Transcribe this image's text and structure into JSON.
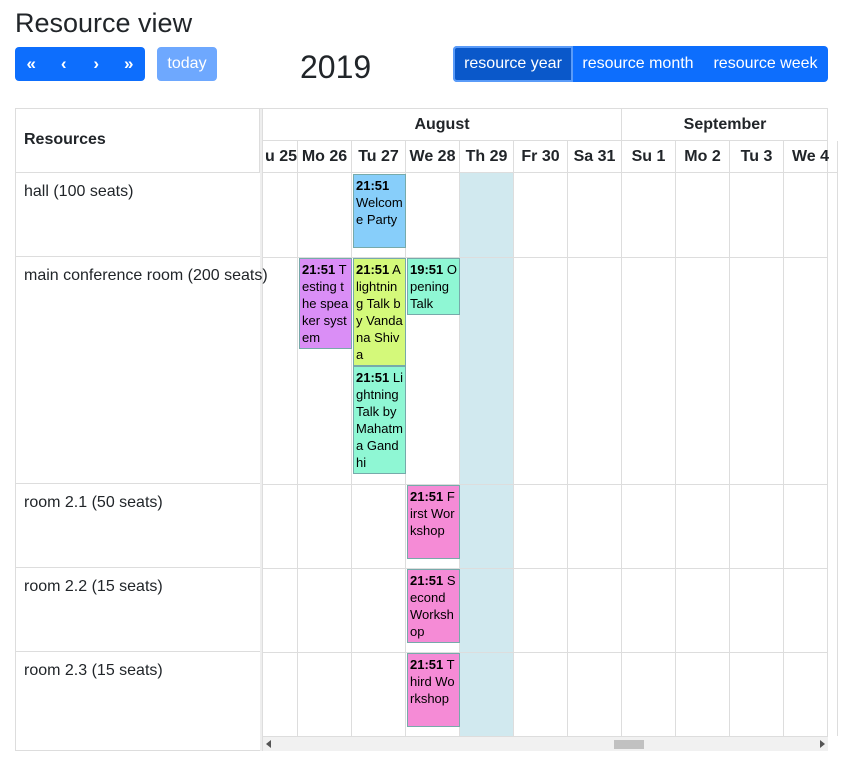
{
  "title": "Resource view",
  "toolbar": {
    "prev_year_icon": "«",
    "prev_icon": "‹",
    "next_icon": "›",
    "next_year_icon": "»",
    "today_label": "today",
    "current_title": "2019",
    "views": [
      "resource year",
      "resource month",
      "resource week"
    ],
    "active_view": "resource year"
  },
  "resources_header": "Resources",
  "months": [
    {
      "label": "August"
    },
    {
      "label": "September"
    }
  ],
  "days": [
    "u 25",
    "Mo 26",
    "Tu 27",
    "We 28",
    "Th 29",
    "Fr 30",
    "Sa 31",
    "Su 1",
    "Mo 2",
    "Tu 3",
    "We 4"
  ],
  "today_day": "Th 29",
  "resources": [
    "hall (100 seats)",
    "main conference room (200 seats)",
    "room 2.1 (50 seats)",
    "room 2.2 (15 seats)",
    "room 2.3 (15 seats)"
  ],
  "events": [
    {
      "time": "21:51",
      "title": "Welcome Party",
      "resource": 0,
      "day": 2,
      "color": "#87cefa"
    },
    {
      "time": "21:51",
      "title": "Testing the speaker system",
      "resource": 1,
      "day": 1,
      "color": "#da8ef6"
    },
    {
      "time": "21:51",
      "title": "A lightning Talk by Vandana Shiva",
      "resource": 1,
      "day": 2,
      "color": "#d4f97a"
    },
    {
      "time": "19:51",
      "title": "Opening Talk",
      "resource": 1,
      "day": 3,
      "color": "#8ff7d4"
    },
    {
      "time": "21:51",
      "title": "Lightning Talk by Mahatma Gandhi",
      "resource": 1,
      "day": 2,
      "color": "#8ff7d4"
    },
    {
      "time": "21:51",
      "title": "First Workshop",
      "resource": 2,
      "day": 3,
      "color": "#f58bd6"
    },
    {
      "time": "21:51",
      "title": "Second Workshop",
      "resource": 3,
      "day": 3,
      "color": "#f58bd6"
    },
    {
      "time": "21:51",
      "title": "Third Workshop",
      "resource": 4,
      "day": 3,
      "color": "#f58bd6"
    }
  ],
  "colors": {
    "primary": "#0d6efd",
    "today_bg": "#d1e9ef"
  }
}
